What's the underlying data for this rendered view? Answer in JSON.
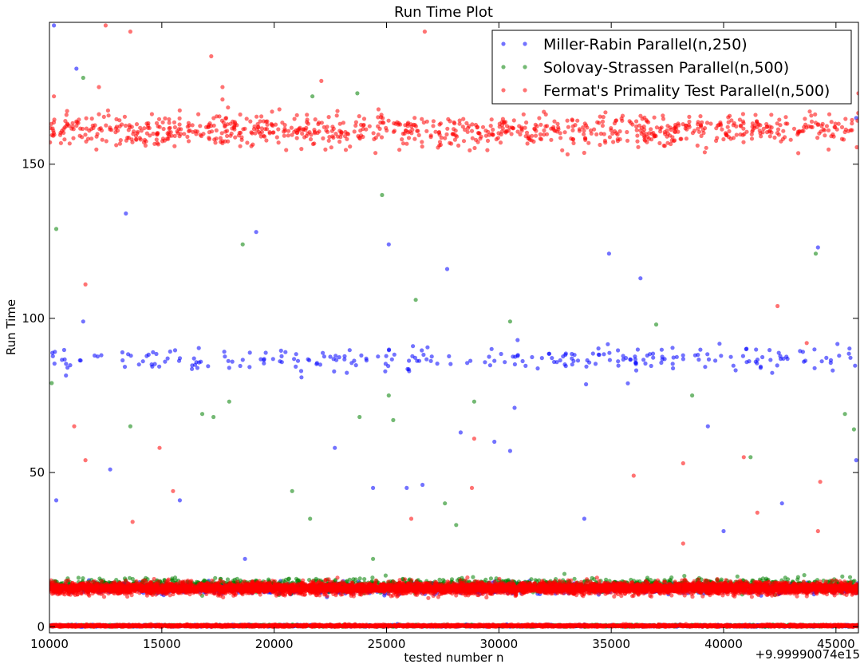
{
  "chart_data": {
    "type": "scatter",
    "title": "Run Time Plot",
    "xlabel": "tested number n",
    "ylabel": "Run Time",
    "x_offset_label": "+9.99990074e15",
    "xlim": [
      10000,
      46000
    ],
    "ylim": [
      -2,
      196
    ],
    "xticks": [
      10000,
      15000,
      20000,
      25000,
      30000,
      35000,
      40000,
      45000
    ],
    "yticks": [
      0,
      50,
      100,
      150
    ],
    "legend_position": "top-right",
    "grid": false,
    "series": [
      {
        "name": "Miller-Rabin Parallel(n,250)",
        "color": "#0000ff",
        "bands": [
          {
            "y_center": 87,
            "spread": 4,
            "approx_points": 260
          },
          {
            "y_center": 12.5,
            "spread": 1.5,
            "approx_points": 1500
          },
          {
            "y_center": 0.3,
            "spread": 0.3,
            "approx_points": 900
          }
        ],
        "outliers": [
          {
            "x": 10200,
            "y": 195
          },
          {
            "x": 11200,
            "y": 181
          },
          {
            "x": 11500,
            "y": 99
          },
          {
            "x": 13400,
            "y": 134
          },
          {
            "x": 19200,
            "y": 128
          },
          {
            "x": 25100,
            "y": 124
          },
          {
            "x": 27700,
            "y": 116
          },
          {
            "x": 34900,
            "y": 121
          },
          {
            "x": 36300,
            "y": 113
          },
          {
            "x": 44200,
            "y": 123
          },
          {
            "x": 10300,
            "y": 41
          },
          {
            "x": 12700,
            "y": 51
          },
          {
            "x": 15800,
            "y": 41
          },
          {
            "x": 22700,
            "y": 58
          },
          {
            "x": 24400,
            "y": 45
          },
          {
            "x": 25900,
            "y": 45
          },
          {
            "x": 28300,
            "y": 63
          },
          {
            "x": 29800,
            "y": 60
          },
          {
            "x": 30700,
            "y": 71
          },
          {
            "x": 30500,
            "y": 57
          },
          {
            "x": 33800,
            "y": 35
          },
          {
            "x": 39300,
            "y": 65
          },
          {
            "x": 40000,
            "y": 31
          },
          {
            "x": 42600,
            "y": 40
          },
          {
            "x": 45900,
            "y": 54
          },
          {
            "x": 45900,
            "y": 165
          },
          {
            "x": 26600,
            "y": 46
          },
          {
            "x": 18700,
            "y": 22
          }
        ]
      },
      {
        "name": "Solovay-Strassen Parallel(n,500)",
        "color": "#008000",
        "bands": [
          {
            "y_center": 13.5,
            "spread": 2,
            "approx_points": 1500
          },
          {
            "y_center": 0.3,
            "spread": 0.3,
            "approx_points": 900
          }
        ],
        "outliers": [
          {
            "x": 10100,
            "y": 79
          },
          {
            "x": 10300,
            "y": 129
          },
          {
            "x": 11500,
            "y": 178
          },
          {
            "x": 13600,
            "y": 65
          },
          {
            "x": 18600,
            "y": 124
          },
          {
            "x": 21700,
            "y": 172
          },
          {
            "x": 23700,
            "y": 173
          },
          {
            "x": 24800,
            "y": 140
          },
          {
            "x": 25100,
            "y": 75
          },
          {
            "x": 25300,
            "y": 67
          },
          {
            "x": 26300,
            "y": 106
          },
          {
            "x": 28900,
            "y": 73
          },
          {
            "x": 30500,
            "y": 99
          },
          {
            "x": 37000,
            "y": 98
          },
          {
            "x": 38600,
            "y": 75
          },
          {
            "x": 41200,
            "y": 55
          },
          {
            "x": 44100,
            "y": 121
          },
          {
            "x": 45400,
            "y": 69
          },
          {
            "x": 45800,
            "y": 64
          },
          {
            "x": 16800,
            "y": 69
          },
          {
            "x": 17300,
            "y": 68
          },
          {
            "x": 18000,
            "y": 73
          },
          {
            "x": 20800,
            "y": 44
          },
          {
            "x": 23800,
            "y": 68
          },
          {
            "x": 21600,
            "y": 35
          },
          {
            "x": 24400,
            "y": 22
          },
          {
            "x": 27600,
            "y": 40
          },
          {
            "x": 28100,
            "y": 33
          }
        ]
      },
      {
        "name": "Fermat's Primality Test Parallel(n,500)",
        "color": "#ff0000",
        "bands": [
          {
            "y_center": 161,
            "spread": 5,
            "approx_points": 900
          },
          {
            "y_center": 12.5,
            "spread": 1.8,
            "approx_points": 6000
          },
          {
            "y_center": 0.3,
            "spread": 0.35,
            "approx_points": 3000
          }
        ],
        "outliers": [
          {
            "x": 12500,
            "y": 195
          },
          {
            "x": 13600,
            "y": 193
          },
          {
            "x": 17200,
            "y": 185
          },
          {
            "x": 26700,
            "y": 193
          },
          {
            "x": 12200,
            "y": 175
          },
          {
            "x": 17700,
            "y": 175
          },
          {
            "x": 17700,
            "y": 171
          },
          {
            "x": 22100,
            "y": 177
          },
          {
            "x": 11600,
            "y": 111
          },
          {
            "x": 42400,
            "y": 104
          },
          {
            "x": 10200,
            "y": 172
          },
          {
            "x": 46000,
            "y": 173
          },
          {
            "x": 11100,
            "y": 65
          },
          {
            "x": 11600,
            "y": 54
          },
          {
            "x": 14900,
            "y": 58
          },
          {
            "x": 28900,
            "y": 61
          },
          {
            "x": 36000,
            "y": 49
          },
          {
            "x": 38200,
            "y": 53
          },
          {
            "x": 40900,
            "y": 55
          },
          {
            "x": 44300,
            "y": 47
          },
          {
            "x": 41500,
            "y": 37
          },
          {
            "x": 44200,
            "y": 31
          },
          {
            "x": 28800,
            "y": 45
          },
          {
            "x": 26100,
            "y": 35
          },
          {
            "x": 13700,
            "y": 34
          },
          {
            "x": 38200,
            "y": 27
          },
          {
            "x": 43700,
            "y": 92
          },
          {
            "x": 15500,
            "y": 44
          }
        ]
      }
    ]
  }
}
